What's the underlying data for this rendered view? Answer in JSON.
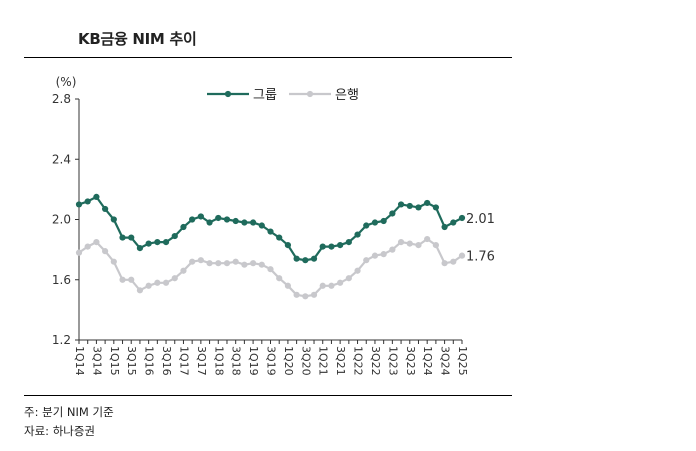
{
  "title": "KB금융 NIM 추이",
  "notes": {
    "note1": "주: 분기 NIM 기준",
    "note2": "자료: 하나증권"
  },
  "colors": {
    "group": "#1f6b5c",
    "bank": "#c8c8cc"
  },
  "chart_data": {
    "type": "line",
    "title": "KB금융 NIM 추이",
    "ylabel": "(%)",
    "xlabel": "",
    "ylim": [
      1.2,
      2.8
    ],
    "yticks": [
      "1.2",
      "1.6",
      "2.0",
      "2.4",
      "2.8"
    ],
    "grid": false,
    "legend_position": "top-center",
    "x": [
      "1Q14",
      "2Q14",
      "3Q14",
      "4Q14",
      "1Q15",
      "2Q15",
      "3Q15",
      "4Q15",
      "1Q16",
      "2Q16",
      "3Q16",
      "4Q16",
      "1Q17",
      "2Q17",
      "3Q17",
      "4Q17",
      "1Q18",
      "2Q18",
      "3Q18",
      "4Q18",
      "1Q19",
      "2Q19",
      "3Q19",
      "4Q19",
      "1Q20",
      "2Q20",
      "3Q20",
      "4Q20",
      "1Q21",
      "2Q21",
      "3Q21",
      "4Q21",
      "1Q22",
      "2Q22",
      "3Q22",
      "4Q22",
      "1Q23",
      "2Q23",
      "3Q23",
      "4Q23",
      "1Q24",
      "2Q24",
      "3Q24",
      "4Q24",
      "1Q25"
    ],
    "xtick_labels": [
      "1Q14",
      "3Q14",
      "1Q15",
      "3Q15",
      "1Q16",
      "3Q16",
      "1Q17",
      "3Q17",
      "1Q18",
      "3Q18",
      "1Q19",
      "3Q19",
      "1Q20",
      "3Q20",
      "1Q21",
      "3Q21",
      "1Q22",
      "3Q22",
      "1Q23",
      "3Q23",
      "1Q24",
      "3Q24",
      "1Q25"
    ],
    "series": [
      {
        "name": "그룹",
        "values": [
          2.1,
          2.12,
          2.15,
          2.07,
          2.0,
          1.88,
          1.88,
          1.81,
          1.84,
          1.85,
          1.85,
          1.89,
          1.95,
          2.0,
          2.02,
          1.98,
          2.01,
          2.0,
          1.99,
          1.98,
          1.98,
          1.96,
          1.92,
          1.88,
          1.83,
          1.74,
          1.73,
          1.74,
          1.82,
          1.82,
          1.83,
          1.85,
          1.9,
          1.96,
          1.98,
          1.99,
          2.04,
          2.1,
          2.09,
          2.08,
          2.11,
          2.08,
          1.95,
          1.98,
          2.01
        ],
        "end_label": "2.01"
      },
      {
        "name": "은행",
        "values": [
          1.78,
          1.82,
          1.85,
          1.79,
          1.72,
          1.6,
          1.6,
          1.53,
          1.56,
          1.58,
          1.58,
          1.61,
          1.66,
          1.72,
          1.73,
          1.71,
          1.71,
          1.71,
          1.72,
          1.7,
          1.71,
          1.7,
          1.67,
          1.61,
          1.56,
          1.5,
          1.49,
          1.5,
          1.56,
          1.56,
          1.58,
          1.61,
          1.66,
          1.73,
          1.76,
          1.77,
          1.8,
          1.85,
          1.84,
          1.83,
          1.87,
          1.83,
          1.71,
          1.72,
          1.76
        ],
        "end_label": "1.76"
      }
    ]
  }
}
